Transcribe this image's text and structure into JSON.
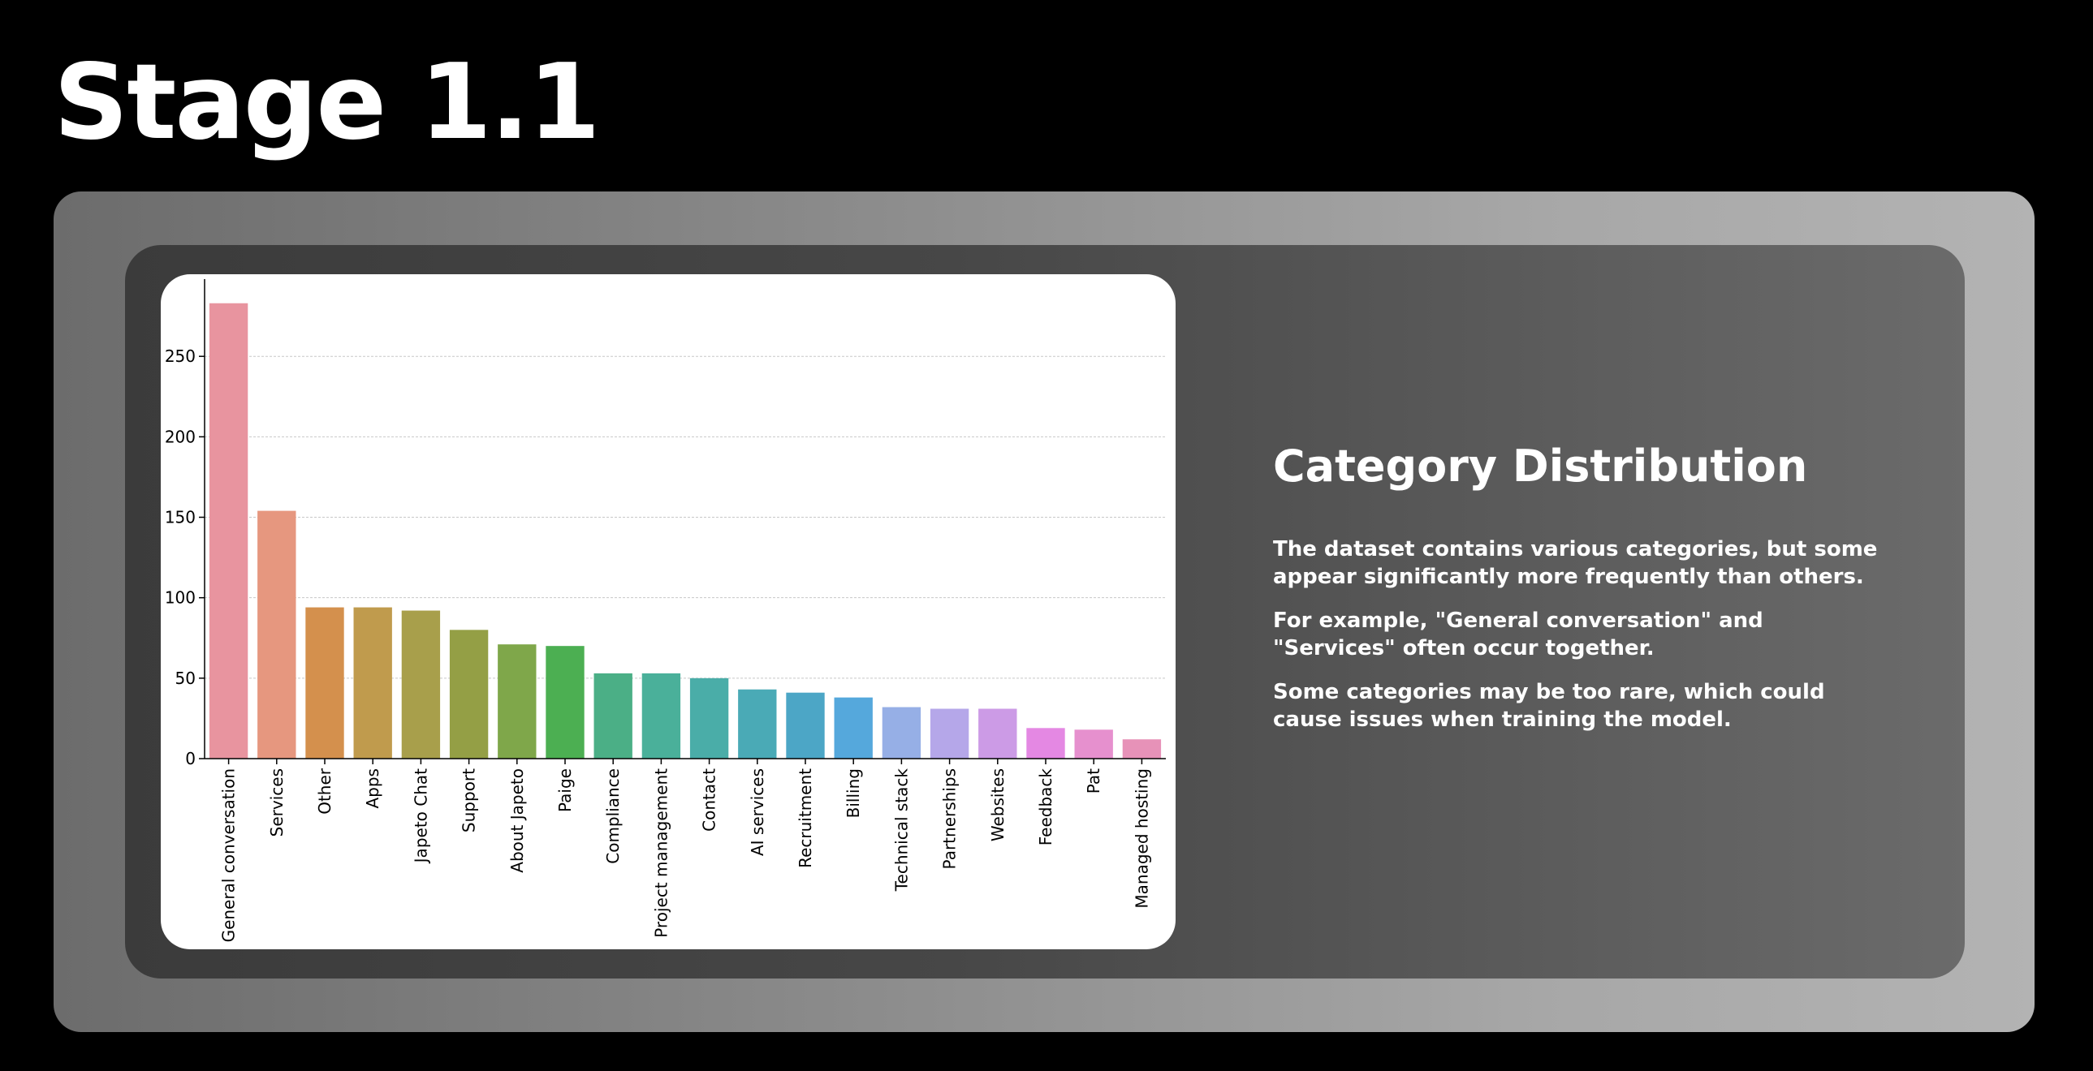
{
  "page": {
    "title": "Stage 1.1"
  },
  "info": {
    "heading": "Category Distribution",
    "paragraphs": [
      "The dataset contains various categories, but some appear significantly more frequently than others.",
      "For example, \"General conversation\" and \"Services\" often occur together.",
      "Some categories may be too rare, which could cause issues when training the model."
    ]
  },
  "chart_data": {
    "type": "bar",
    "title": "",
    "xlabel": "",
    "ylabel": "",
    "ylim": [
      0,
      298
    ],
    "yticks": [
      0,
      50,
      100,
      150,
      200,
      250
    ],
    "grid": "horizontal",
    "categories": [
      "General conversation",
      "Services",
      "Other",
      "Apps",
      "Japeto Chat",
      "Support",
      "About Japeto",
      "Paige",
      "Compliance",
      "Project management",
      "Contact",
      "AI services",
      "Recruitment",
      "Billing",
      "Technical stack",
      "Partnerships",
      "Websites",
      "Feedback",
      "Pat",
      "Managed hosting"
    ],
    "values": [
      283,
      154,
      94,
      94,
      92,
      80,
      71,
      70,
      53,
      53,
      50,
      43,
      41,
      38,
      32,
      31,
      31,
      19,
      18,
      12
    ],
    "colors": [
      "#E8949F",
      "#E6977F",
      "#D4904D",
      "#C09B4D",
      "#A89F4B",
      "#949F45",
      "#7FA74A",
      "#4CAF52",
      "#4BAF86",
      "#4AB09A",
      "#4AADA8",
      "#4AAAB6",
      "#4CA6C6",
      "#55A8DC",
      "#96AFE6",
      "#B5A7E9",
      "#CC9BE6",
      "#E488E3",
      "#E690CE",
      "#E792B8"
    ]
  }
}
